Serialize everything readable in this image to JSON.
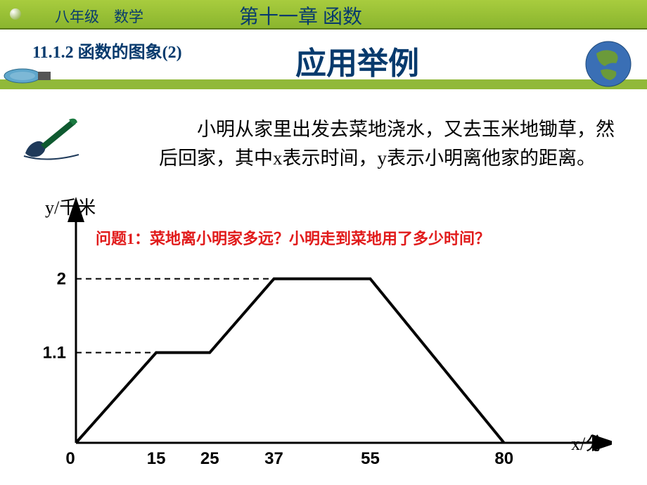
{
  "header": {
    "grade": "八年级　数学",
    "chapter": "第十一章  函数",
    "section": "11.1.2  函数的图象(2)",
    "main_title": "应用举例"
  },
  "paragraph": "　　小明从家里出发去菜地浇水，又去玉米地锄草，然后回家，其中x表示时间，y表示小明离他家的距离。",
  "question1": "问题1：菜地离小明家多远？小明走到菜地用了多少时间？",
  "chart": {
    "type": "line",
    "y_label": "y/千米",
    "x_label": "x/分",
    "origin_label": "0",
    "y_ticks": [
      {
        "value": 1.1,
        "label": "1.1"
      },
      {
        "value": 2.0,
        "label": "2"
      }
    ],
    "x_ticks": [
      15,
      25,
      37,
      55,
      80
    ],
    "points": [
      {
        "x": 0,
        "y": 0
      },
      {
        "x": 15,
        "y": 1.1
      },
      {
        "x": 25,
        "y": 1.1
      },
      {
        "x": 37,
        "y": 2.0
      },
      {
        "x": 55,
        "y": 2.0
      },
      {
        "x": 80,
        "y": 0
      }
    ],
    "xlim": [
      0,
      92
    ],
    "ylim": [
      0,
      2.4
    ],
    "line_color": "#000000",
    "line_width": 4,
    "dash_color": "#000000",
    "axis_color": "#000000",
    "background_color": "#ffffff",
    "tick_fontsize": 24,
    "label_fontsize": 26
  },
  "colors": {
    "header_bg": "#8ab52e",
    "title_color": "#073a6d",
    "question_color": "#e11b1b",
    "globe_blue": "#3a6fb5",
    "globe_land": "#6b9a3a"
  }
}
